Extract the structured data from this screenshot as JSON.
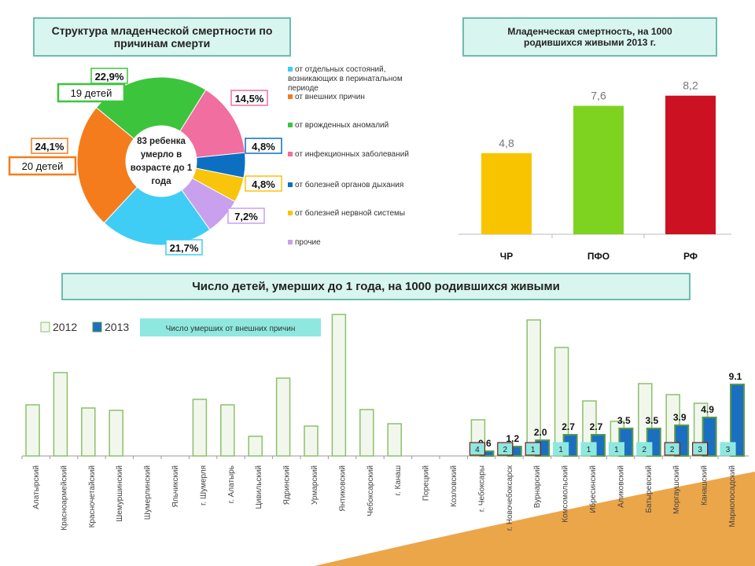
{
  "pie_title": "Структура младенческой смертности по причинам смерти",
  "bar_title": "Младенческая смертность, на 1000 родившихся живыми 2013 г.",
  "bottom_title": "Число детей, умерших до 1 года, на 1000 родившихся живыми",
  "chart_data": [
    {
      "type": "pie",
      "title": "Структура младенческой смертности по причинам смерти",
      "center_text": "83 ребенка умерло в возрасте до 1 года",
      "slices": [
        {
          "name": "от отдельных состояний, возникающих в перинатальном периоде",
          "value": 21.7,
          "label": "21,7%",
          "color": "#3fcdf5"
        },
        {
          "name": "от внешних причин",
          "value": 24.1,
          "label": "24,1%",
          "note": "20 детей",
          "color": "#f47c1c"
        },
        {
          "name": "от врожденных аномалий",
          "value": 22.9,
          "label": "22,9%",
          "note": "19 детей",
          "color": "#3dc43d"
        },
        {
          "name": "от инфекционных заболеваний",
          "value": 14.5,
          "label": "14,5%",
          "color": "#f06ea0"
        },
        {
          "name": "от болезней органов дыхания",
          "value": 4.8,
          "label": "4,8%",
          "color": "#0d6fc2"
        },
        {
          "name": "от болезней нервной системы",
          "value": 4.8,
          "label": "4,8%",
          "color": "#f8c40c"
        },
        {
          "name": "прочие",
          "value": 7.2,
          "label": "7,2%",
          "color": "#c8a0ee"
        }
      ]
    },
    {
      "type": "bar",
      "title": "Младенческая смертность, на 1000 родившихся живыми 2013 г.",
      "categories": [
        "ЧР",
        "ПФО",
        "РФ"
      ],
      "values": [
        4.8,
        7.6,
        8.2
      ],
      "labels": [
        "4,8",
        "7,6",
        "8,2"
      ],
      "colors": [
        "#f8c400",
        "#7ed321",
        "#cc1122"
      ],
      "ylim": [
        0,
        8.5
      ]
    },
    {
      "type": "bar",
      "title": "Число детей, умерших до 1 года, на 1000 родившихся живыми",
      "legend": [
        "2012",
        "2013"
      ],
      "annotation_legend": "Число умерших от внешних причин",
      "categories": [
        "Алатырский",
        "Красноармейский",
        "Красночетайский",
        "Шемуршинский",
        "Шумерлинский",
        "Яльчикский",
        "г. Шумерля",
        "г. Алатырь",
        "Цивильский",
        "Ядринский",
        "Урмарский",
        "Янтиковский",
        "Чебоксарский",
        "г. Канаш",
        "Порецкий",
        "Козловский",
        "г. Чебоксары",
        "г. Новочебоксарск",
        "Вурнарский",
        "Комсомольский",
        "Ибресинский",
        "Аликовский",
        "Батыревский",
        "Моргаушский",
        "Канашский",
        "Мариопосадский"
      ],
      "series": [
        {
          "name": "2012",
          "values": [
            6.5,
            10.6,
            6.1,
            5.8,
            0,
            0,
            7.2,
            6.5,
            2.5,
            9.9,
            3.8,
            18,
            5.9,
            4.1,
            0,
            0,
            4.6,
            1.6,
            17.3,
            13.8,
            7.0,
            4.4,
            9.2,
            7.8,
            6.7,
            0
          ]
        },
        {
          "name": "2013",
          "values": [
            null,
            null,
            null,
            null,
            null,
            null,
            null,
            null,
            null,
            null,
            null,
            null,
            null,
            null,
            null,
            null,
            0.6,
            1.2,
            2.0,
            2.7,
            2.7,
            3.5,
            3.5,
            3.9,
            4.9,
            9.1
          ],
          "labels": [
            "",
            "",
            "",
            "",
            "",
            "",
            "",
            "",
            "",
            "",
            "",
            "",
            "",
            "",
            "",
            "",
            "0.6",
            "1.2",
            "2.0",
            "2.7",
            "2.7",
            "3.5",
            "3.5",
            "3.9",
            "4.9",
            "9.1"
          ]
        },
        {
          "name": "Число умерших от внешних причин",
          "values": [
            null,
            null,
            null,
            null,
            null,
            null,
            null,
            null,
            null,
            null,
            null,
            null,
            null,
            null,
            null,
            null,
            4,
            2,
            1,
            1,
            1,
            1,
            2,
            2,
            3,
            3
          ]
        }
      ],
      "colors": {
        "2012": "#f2f7ee",
        "2013": "#1b6fc0",
        "external": "#8ee8e0"
      }
    }
  ]
}
